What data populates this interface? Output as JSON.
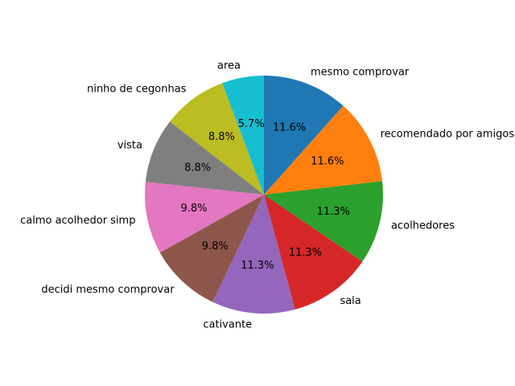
{
  "chart_data": {
    "type": "pie",
    "title": "",
    "start_angle_deg": 90,
    "direction": "clockwise",
    "slices": [
      {
        "label": "mesmo comprovar",
        "value": 11.6,
        "pct_label": "11.6%",
        "color": "#1f77b4"
      },
      {
        "label": "recomendado por amigos",
        "value": 11.6,
        "pct_label": "11.6%",
        "color": "#ff7f0e"
      },
      {
        "label": "acolhedores",
        "value": 11.3,
        "pct_label": "11.3%",
        "color": "#2ca02c"
      },
      {
        "label": "sala",
        "value": 11.3,
        "pct_label": "11.3%",
        "color": "#d62728"
      },
      {
        "label": "cativante",
        "value": 11.3,
        "pct_label": "11.3%",
        "color": "#9467bd"
      },
      {
        "label": "decidi mesmo comprovar",
        "value": 9.8,
        "pct_label": "9.8%",
        "color": "#8c564b"
      },
      {
        "label": "calmo acolhedor simp",
        "value": 9.8,
        "pct_label": "9.8%",
        "color": "#e377c2"
      },
      {
        "label": "vista",
        "value": 8.8,
        "pct_label": "8.8%",
        "color": "#7f7f7f"
      },
      {
        "label": "ninho de cegonhas",
        "value": 8.8,
        "pct_label": "8.8%",
        "color": "#bcbd22"
      },
      {
        "label": "area",
        "value": 5.7,
        "pct_label": "5.7%",
        "color": "#17becf"
      }
    ]
  }
}
